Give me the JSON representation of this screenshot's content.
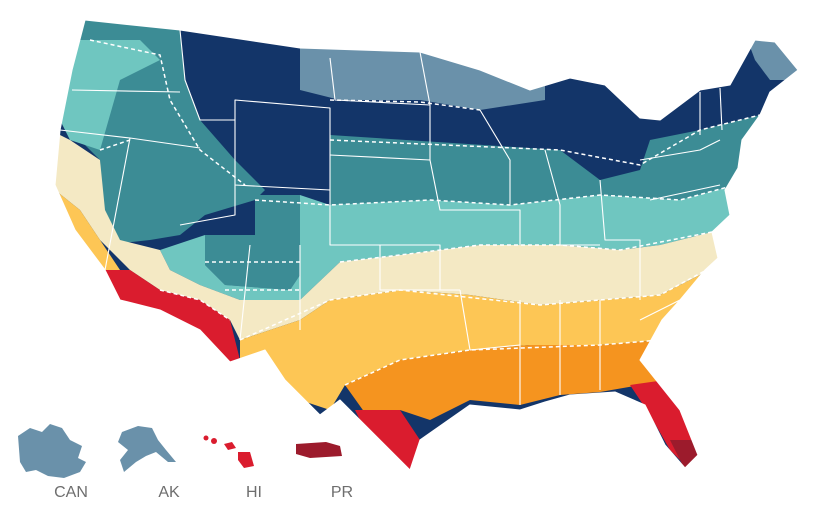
{
  "colors": {
    "zone_navy": "#133569",
    "zone_slate": "#6a91aa",
    "zone_teal": "#3c8c95",
    "zone_aqua": "#6fc6c0",
    "zone_cream": "#f4e9c4",
    "zone_gold": "#fdc655",
    "zone_orange": "#f5941f",
    "zone_red": "#da1c2e",
    "zone_darkred": "#9c1b2c",
    "border": "#ffffff",
    "label_text": "#6e6e6e"
  },
  "insets": [
    {
      "id": "canada",
      "label": "CAN",
      "color": "#6a91aa"
    },
    {
      "id": "alaska",
      "label": "AK",
      "color": "#6a91aa"
    },
    {
      "id": "hawaii",
      "label": "HI",
      "color": "#da1c2e"
    },
    {
      "id": "puerto-rico",
      "label": "PR",
      "color": "#9c1b2c"
    }
  ]
}
